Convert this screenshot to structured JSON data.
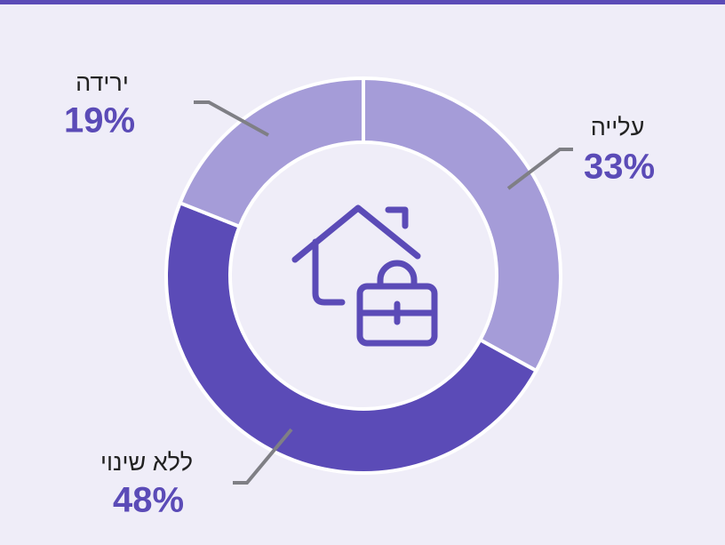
{
  "chart_data": {
    "type": "pie",
    "categories": [
      "עלייה",
      "ללא שינוי",
      "ירידה"
    ],
    "values": [
      33,
      48,
      19
    ],
    "value_labels": [
      "33%",
      "48%",
      "19%"
    ],
    "colors": [
      "#a59cd8",
      "#5b4bb7",
      "#a59cd8"
    ]
  }
}
